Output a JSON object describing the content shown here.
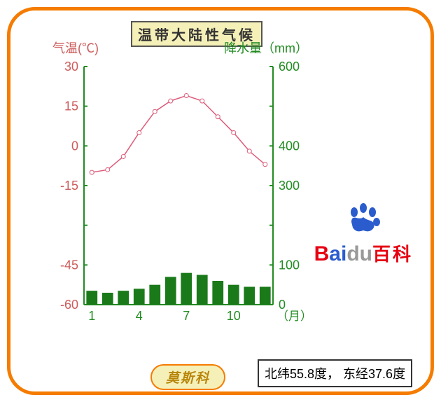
{
  "title": "温带大陆性气候",
  "location": "莫斯科",
  "coords": "北纬55.8度， 东经37.6度",
  "temp_axis": {
    "label": "气温(℃)",
    "color": "#cd5c5c",
    "ticks": [
      30,
      15,
      0,
      -15,
      "",
      -45,
      -60
    ],
    "lim": [
      -60,
      30
    ]
  },
  "precip_axis": {
    "label": "降水量（mm）",
    "color": "#228b22",
    "ticks": [
      600,
      "",
      400,
      300,
      "",
      100,
      0
    ],
    "lim": [
      0,
      600
    ]
  },
  "x_axis": {
    "ticks": [
      1,
      4,
      7,
      10
    ],
    "label": "（月）",
    "color": "#228b22"
  },
  "months": [
    1,
    2,
    3,
    4,
    5,
    6,
    7,
    8,
    9,
    10,
    11,
    12
  ],
  "temp_data": [
    -10,
    -9,
    -4,
    5,
    13,
    17,
    19,
    17,
    11,
    5,
    -2,
    -7
  ],
  "precip_data": [
    35,
    30,
    35,
    40,
    50,
    70,
    80,
    75,
    60,
    50,
    45,
    45
  ],
  "line_color": "#dc5c7a",
  "line_width": 1.5,
  "marker": "circle",
  "marker_size": 3,
  "bar_color": "#1a7a1a",
  "bar_width": 0.7,
  "bg": "#ffffff",
  "axis_color": "#228b22",
  "logo": {
    "text": "Baidu",
    "cn": "百科",
    "paw_color": "#2b5cce"
  }
}
